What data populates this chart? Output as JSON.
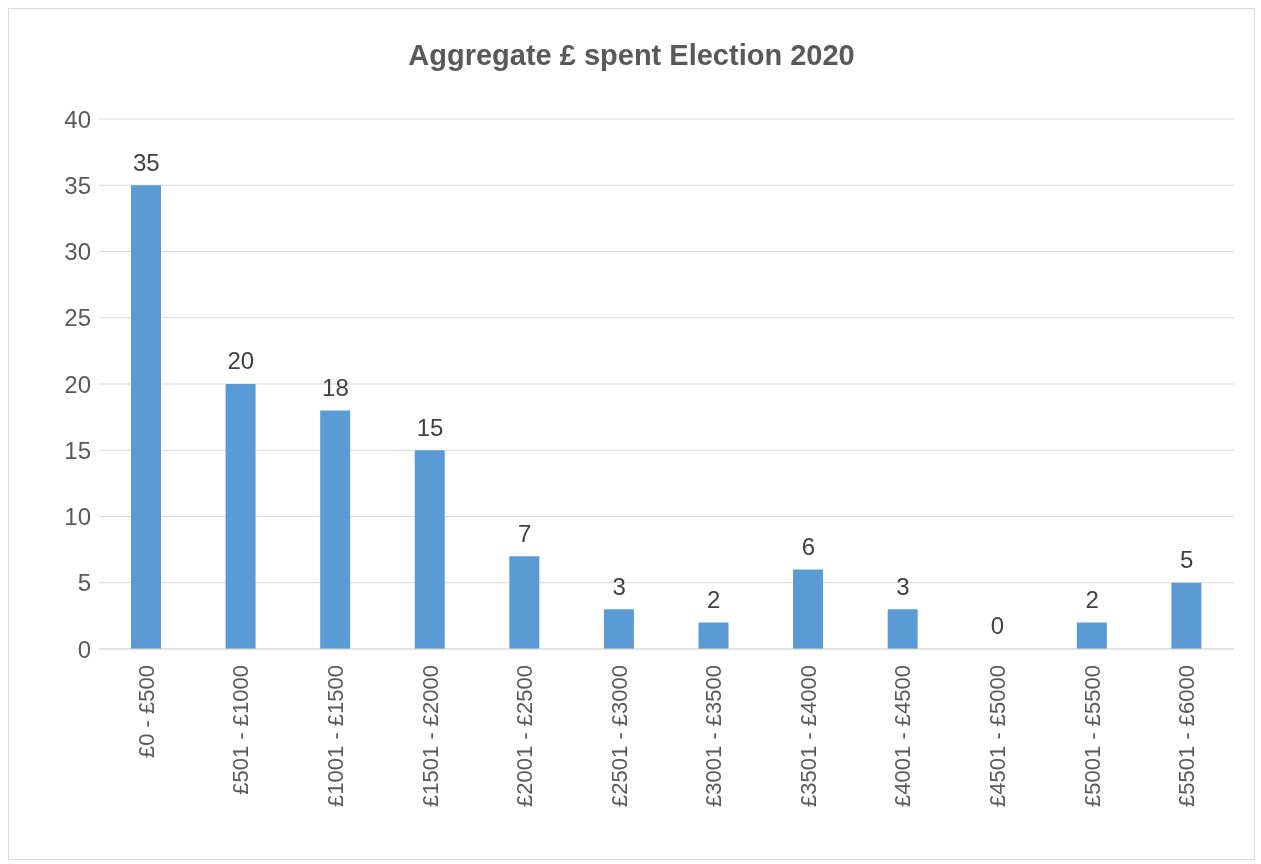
{
  "chart_data": {
    "type": "bar",
    "title": "Aggregate £ spent Election 2020",
    "categories": [
      "£0 - £500",
      "£501 - £1000",
      "£1001 - £1500",
      "£1501 - £2000",
      "£2001 - £2500",
      "£2501 - £3000",
      "£3001 - £3500",
      "£3501 - £4000",
      "£4001 - £4500",
      "£4501 - £5000",
      "£5001 - £5500",
      "£5501 - £6000"
    ],
    "values": [
      35,
      20,
      18,
      15,
      7,
      3,
      2,
      6,
      3,
      0,
      2,
      5
    ],
    "color": "#5b9bd5",
    "ylim": [
      0,
      40
    ],
    "yticks": [
      0,
      5,
      10,
      15,
      20,
      25,
      30,
      35,
      40
    ],
    "grid": "y",
    "data_labels": true,
    "legend": false
  }
}
